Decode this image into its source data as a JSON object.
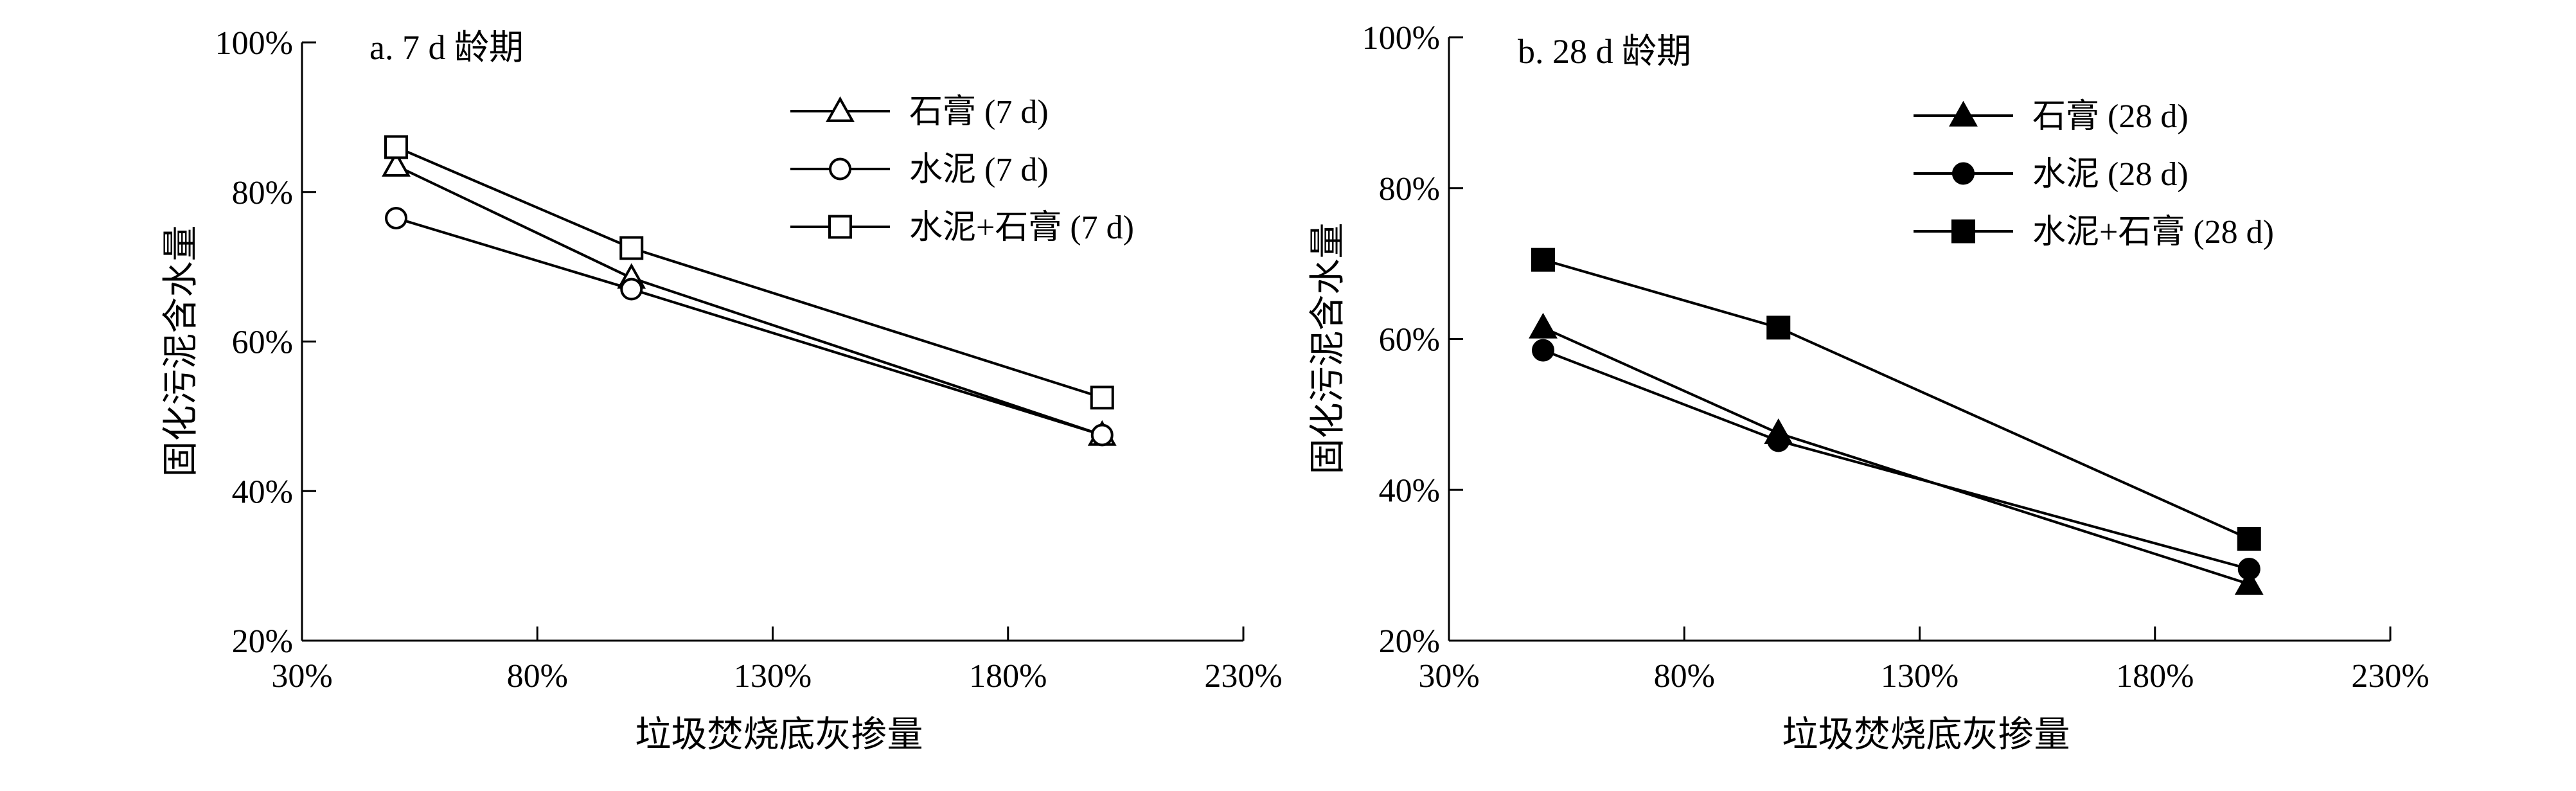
{
  "chart_data": [
    {
      "type": "line",
      "panel_label": "a. 7 d 龄期",
      "xlabel": "垃圾焚烧底灰掺量",
      "ylabel": "固化污泥含水量",
      "xlim": [
        30,
        230
      ],
      "ylim": [
        20,
        100
      ],
      "xticks": [
        "30%",
        "80%",
        "130%",
        "180%",
        "230%"
      ],
      "yticks": [
        "20%",
        "40%",
        "60%",
        "80%",
        "100%"
      ],
      "x": [
        50,
        100,
        200
      ],
      "legend_position": "top-right",
      "series": [
        {
          "name": "石膏 (7 d)",
          "marker": "triangle-open",
          "values": [
            83.5,
            68.5,
            47.5
          ]
        },
        {
          "name": "水泥 (7 d)",
          "marker": "circle-open",
          "values": [
            76.5,
            67.0,
            47.5
          ]
        },
        {
          "name": "水泥+石膏 (7 d)",
          "marker": "square-open",
          "values": [
            86.0,
            72.5,
            52.5
          ]
        }
      ]
    },
    {
      "type": "line",
      "panel_label": "b. 28 d 龄期",
      "xlabel": "垃圾焚烧底灰掺量",
      "ylabel": "固化污泥含水量",
      "xlim": [
        30,
        230
      ],
      "ylim": [
        20,
        100
      ],
      "xticks": [
        "30%",
        "80%",
        "130%",
        "180%",
        "230%"
      ],
      "yticks": [
        "20%",
        "40%",
        "60%",
        "80%",
        "100%"
      ],
      "x": [
        50,
        100,
        200
      ],
      "legend_position": "top-right",
      "series": [
        {
          "name": "石膏 (28 d)",
          "marker": "triangle-filled",
          "values": [
            61.5,
            47.5,
            27.5
          ]
        },
        {
          "name": "水泥 (28 d)",
          "marker": "circle-filled",
          "values": [
            58.5,
            46.5,
            29.5
          ]
        },
        {
          "name": "水泥+石膏 (28 d)",
          "marker": "square-filled",
          "values": [
            70.5,
            61.5,
            33.5
          ]
        }
      ]
    }
  ]
}
